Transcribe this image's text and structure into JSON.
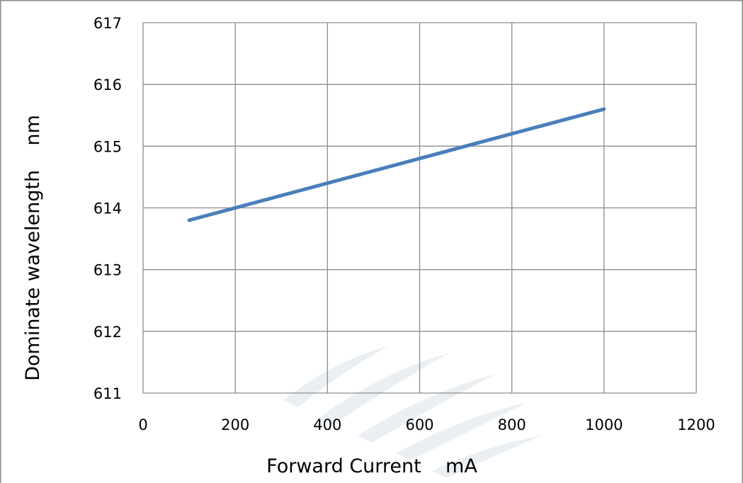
{
  "chart_data": {
    "type": "line",
    "title": "",
    "xlabel": "Forward Current    mA",
    "ylabel": "Dominate wavelength    nm",
    "xlim": [
      0,
      1200
    ],
    "ylim": [
      611,
      617
    ],
    "xticks": [
      0,
      200,
      400,
      600,
      800,
      1000,
      1200
    ],
    "yticks": [
      611,
      612,
      613,
      614,
      615,
      616,
      617
    ],
    "grid": true,
    "legend": "none",
    "series": [
      {
        "color": "#4a7ebb",
        "x": [
          100,
          1000
        ],
        "y": [
          613.8,
          615.6
        ]
      }
    ]
  }
}
